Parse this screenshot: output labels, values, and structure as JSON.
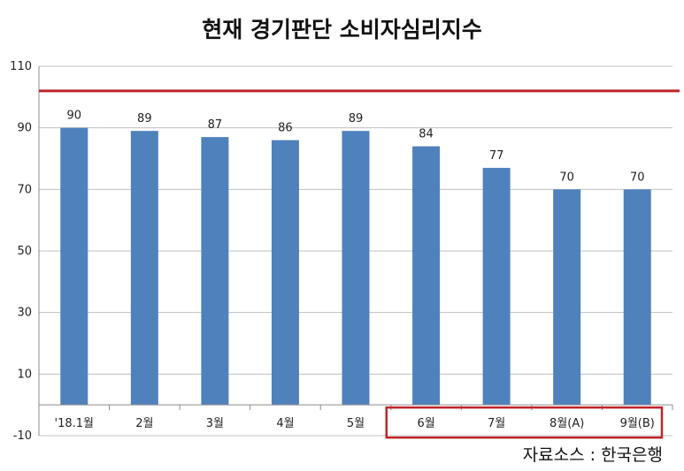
{
  "chart_data": {
    "type": "bar",
    "title": "현재 경기판단 소비자심리지수",
    "categories": [
      "'18.1월",
      "2월",
      "3월",
      "4월",
      "5월",
      "6월",
      "7월",
      "8월(A)",
      "9월(B)"
    ],
    "values": [
      90,
      89,
      87,
      86,
      89,
      84,
      77,
      70,
      70
    ],
    "data_labels": [
      "90",
      "89",
      "87",
      "86",
      "89",
      "84",
      "77",
      "70",
      "70"
    ],
    "ylim": [
      -10,
      110
    ],
    "yticks": [
      -10,
      10,
      30,
      50,
      70,
      90,
      110
    ],
    "ytick_labels": [
      "-10",
      "10",
      "30",
      "50",
      "70",
      "90",
      "110"
    ],
    "reference_line": 102,
    "grid": true,
    "highlight_categories": [
      "6월",
      "7월",
      "8월(A)",
      "9월(B)"
    ],
    "colors": {
      "bar": "#4f81bd",
      "reference_line": "#c0232b",
      "highlight_box": "#c0232b",
      "grid": "#bfbfbf"
    },
    "source": "자료소스 : 한국은행"
  }
}
